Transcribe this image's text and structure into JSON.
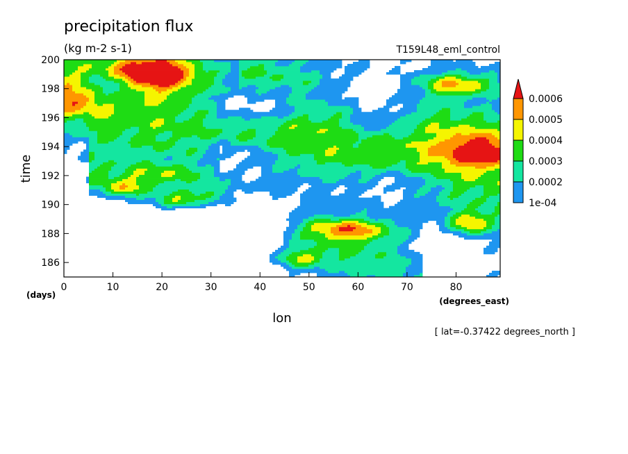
{
  "chart_data": {
    "type": "heatmap",
    "title": "precipitation flux",
    "subtitle": "(kg m-2 s-1)",
    "run_label": "T159L48_eml_control",
    "xlabel": "lon",
    "ylabel": "time",
    "x_units": "(degrees_east)",
    "y_units": "(days)",
    "footer": "[ lat=-0.37422 degrees_north ]",
    "xlim": [
      0,
      89
    ],
    "ylim": [
      185,
      200
    ],
    "x_ticks": [
      "0",
      "10",
      "20",
      "30",
      "40",
      "50",
      "60",
      "70",
      "80"
    ],
    "y_ticks": [
      "186",
      "188",
      "190",
      "192",
      "194",
      "196",
      "198",
      "200"
    ],
    "levels": [
      "1e-04",
      "0.0002",
      "0.0003",
      "0.0004",
      "0.0005",
      "0.0006"
    ],
    "colors": [
      "#ffffff",
      "#1e96f0",
      "#14e6a0",
      "#1edc14",
      "#f5f500",
      "#ff9600",
      "#e61414"
    ],
    "bands": [
      {
        "x0": 0,
        "t0": 199.5,
        "x1": 89,
        "t1": 193.5,
        "amp": 0.00022,
        "w": 1.8
      },
      {
        "x0": 0,
        "t0": 197.5,
        "x1": 89,
        "t1": 190.5,
        "amp": 0.00018,
        "w": 1.5
      },
      {
        "x0": 8,
        "t0": 191.8,
        "x1": 70,
        "t1": 186.0,
        "amp": 0.00024,
        "w": 1.6
      },
      {
        "x0": 38,
        "t0": 199.5,
        "x1": 89,
        "t1": 194.8,
        "amp": 0.00014,
        "w": 1.2
      },
      {
        "x0": 0,
        "t0": 196.0,
        "x1": 30,
        "t1": 193.0,
        "amp": 0.0001,
        "w": 1.0
      }
    ],
    "blobs": [
      {
        "x": 18,
        "t": 199.2,
        "amp": 0.00058,
        "sx": 6,
        "st": 0.8
      },
      {
        "x": 80,
        "t": 198.3,
        "amp": 0.00042,
        "sx": 6,
        "st": 0.6
      },
      {
        "x": 84,
        "t": 193.6,
        "amp": 0.00034,
        "sx": 6,
        "st": 0.8
      },
      {
        "x": 83,
        "t": 188.7,
        "amp": 0.00038,
        "sx": 3,
        "st": 0.6
      },
      {
        "x": 58,
        "t": 188.3,
        "amp": 0.00036,
        "sx": 6,
        "st": 0.5
      },
      {
        "x": 23,
        "t": 190.2,
        "amp": 0.00026,
        "sx": 4,
        "st": 0.4
      },
      {
        "x": 12,
        "t": 191.1,
        "amp": 0.00024,
        "sx": 3,
        "st": 0.4
      },
      {
        "x": 20,
        "t": 192.1,
        "amp": 0.00018,
        "sx": 6,
        "st": 0.5
      },
      {
        "x": 48,
        "t": 186.3,
        "amp": 0.00028,
        "sx": 4,
        "st": 0.5
      },
      {
        "x": 2,
        "t": 197.2,
        "amp": 0.0002,
        "sx": 4,
        "st": 0.6
      },
      {
        "x": 29,
        "t": 190.9,
        "amp": 0.00016,
        "sx": 3,
        "st": 0.4
      },
      {
        "x": 57,
        "t": 196.2,
        "amp": 0.0001,
        "sx": 8,
        "st": 1.0
      }
    ],
    "voids": [
      {
        "x": 25,
        "t": 187.8,
        "amp": 0.00045,
        "sx": 14,
        "st": 2.0
      },
      {
        "x": 5,
        "t": 188.5,
        "amp": 0.0003,
        "sx": 6,
        "st": 1.3
      },
      {
        "x": 38,
        "t": 196.8,
        "amp": 0.0003,
        "sx": 8,
        "st": 1.0
      },
      {
        "x": 62,
        "t": 197.5,
        "amp": 0.0003,
        "sx": 8,
        "st": 1.0
      },
      {
        "x": 64,
        "t": 195.8,
        "amp": 0.00025,
        "sx": 6,
        "st": 0.8
      },
      {
        "x": 10,
        "t": 198.3,
        "amp": 0.00025,
        "sx": 4,
        "st": 0.8
      },
      {
        "x": 40,
        "t": 189.2,
        "amp": 0.0002,
        "sx": 5,
        "st": 0.8
      },
      {
        "x": 68,
        "t": 191.5,
        "amp": 0.00018,
        "sx": 6,
        "st": 0.8
      },
      {
        "x": 35,
        "t": 193.5,
        "amp": 0.00015,
        "sx": 6,
        "st": 0.8
      },
      {
        "x": 75,
        "t": 186.5,
        "amp": 0.0002,
        "sx": 6,
        "st": 1.0
      }
    ]
  }
}
